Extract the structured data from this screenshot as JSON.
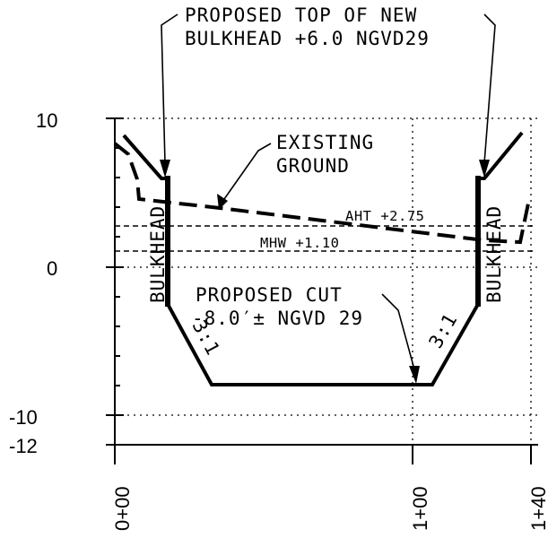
{
  "drawing": {
    "callout_top_line1": "PROPOSED TOP OF NEW",
    "callout_top_line2": "BULKHEAD +6.0 NGVD29",
    "callout_ground_line1": "EXISTING",
    "callout_ground_line2": "GROUND",
    "callout_cut_line1": "PROPOSED CUT",
    "callout_cut_line2": "-8.0′± NGVD 29",
    "bulkhead_left": "BULKHEAD",
    "bulkhead_right": "BULKHEAD",
    "slope_left": "3:1",
    "slope_right": "3:1",
    "aht_label": "AHT +2.75",
    "mhw_label": "MHW +1.10"
  },
  "axes": {
    "y_ticks": [
      "10",
      "0",
      "-10",
      "-12"
    ],
    "x_ticks": [
      "0+00",
      "1+00",
      "1+40"
    ]
  },
  "section": {
    "proposed_top_elev": 6.0,
    "proposed_cut_elev": -8.0,
    "aht_elev": 2.75,
    "mhw_elev": 1.1,
    "side_slope": "3:1"
  }
}
